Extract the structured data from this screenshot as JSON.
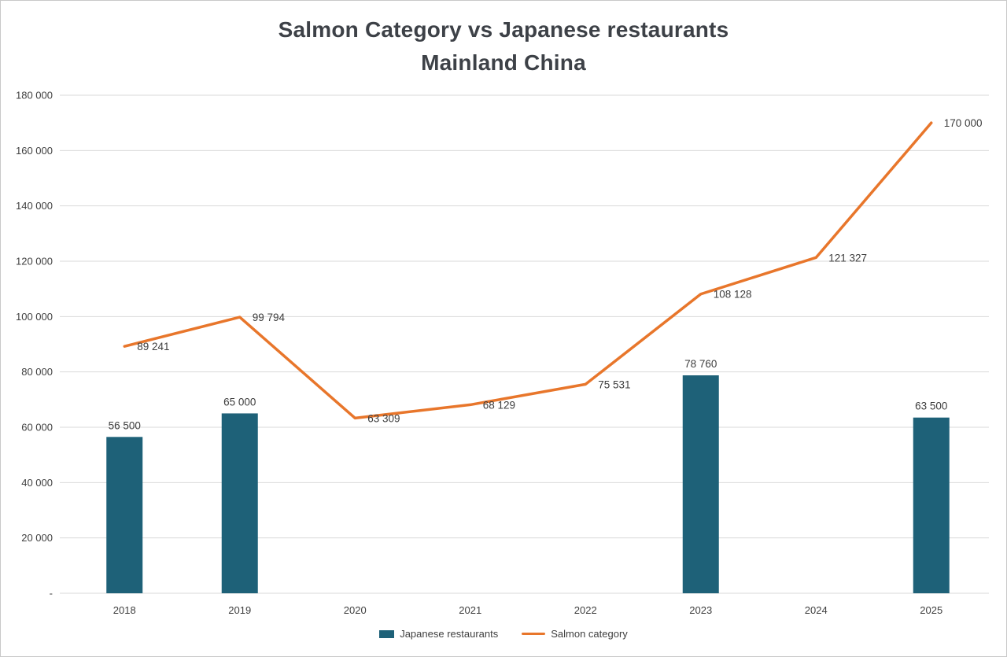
{
  "title": {
    "line1": "Salmon Category vs Japanese restaurants",
    "line2": "Mainland China"
  },
  "chart_data": {
    "type": "combo",
    "categories": [
      "2018",
      "2019",
      "2020",
      "2021",
      "2022",
      "2023",
      "2024",
      "2025"
    ],
    "series": [
      {
        "name": "Japanese restaurants",
        "type": "bar",
        "color": "#1E6178",
        "values": [
          56500,
          65000,
          null,
          null,
          null,
          78760,
          null,
          63500
        ],
        "labels": [
          "56 500",
          "65 000",
          null,
          null,
          null,
          "78 760",
          null,
          "63 500"
        ]
      },
      {
        "name": "Salmon category",
        "type": "line",
        "color": "#E8762B",
        "values": [
          89241,
          99794,
          63309,
          68129,
          75531,
          108128,
          121327,
          170000
        ],
        "labels": [
          "89 241",
          "99 794",
          "63 309",
          "68 129",
          "75 531",
          "108 128",
          "121 327",
          "170 000"
        ]
      }
    ],
    "ylim": [
      0,
      180000
    ],
    "ytick_step": 20000,
    "ytick_labels": [
      "-",
      "20 000",
      "40 000",
      "60 000",
      "80 000",
      "100 000",
      "120 000",
      "140 000",
      "160 000",
      "180 000"
    ],
    "grid": "horizontal",
    "gridline_color": "#D9D9D9",
    "text_color": "#404040",
    "background": "#FFFFFF",
    "legend_position": "bottom"
  }
}
